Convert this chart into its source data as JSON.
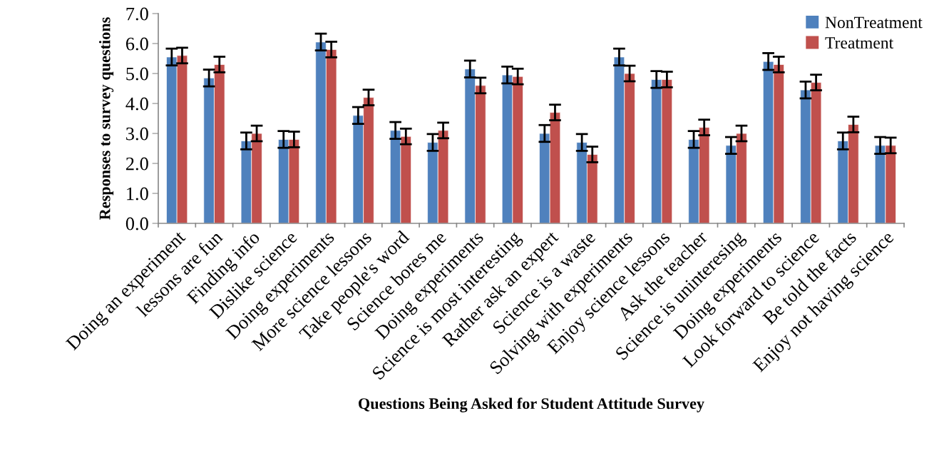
{
  "chart_data": {
    "type": "bar",
    "xlabel": "Questions Being Asked for Student Attitude Survey",
    "ylabel": "Responses to survey questions",
    "categories": [
      "Doing an experiment",
      "lessons are fun",
      "Finding info",
      "Dislike science",
      "Doing experiments",
      "More science lessons",
      "Take people's word",
      "Science bores me",
      "Doing experiments",
      "Science is most interesting",
      "Rather ask an expert",
      "Science is a waste",
      "Solving with experiments",
      "Enjoy science lessons",
      "Ask the teacher",
      "Science is uninteresing",
      "Doing experiments",
      "Look forward to science",
      "Be told the facts",
      "Enjoy not having science"
    ],
    "series": [
      {
        "name": "NonTreatment",
        "color": "#4f81bd",
        "values": [
          5.55,
          4.85,
          2.75,
          2.8,
          6.05,
          3.6,
          3.1,
          2.7,
          5.15,
          4.95,
          3.0,
          2.7,
          5.55,
          4.8,
          2.8,
          2.6,
          5.4,
          4.45,
          2.75,
          2.6
        ],
        "errors": [
          0.28,
          0.28,
          0.28,
          0.28,
          0.28,
          0.28,
          0.28,
          0.28,
          0.28,
          0.28,
          0.28,
          0.28,
          0.28,
          0.28,
          0.28,
          0.28,
          0.28,
          0.28,
          0.28,
          0.28
        ]
      },
      {
        "name": "Treatment",
        "color": "#c0504d",
        "values": [
          5.6,
          5.3,
          3.0,
          2.8,
          5.8,
          4.2,
          2.9,
          3.1,
          4.6,
          4.9,
          3.7,
          2.3,
          5.0,
          4.8,
          3.2,
          3.0,
          5.3,
          4.7,
          3.3,
          2.6
        ],
        "errors": [
          0.26,
          0.26,
          0.26,
          0.26,
          0.26,
          0.26,
          0.26,
          0.26,
          0.26,
          0.26,
          0.26,
          0.26,
          0.26,
          0.26,
          0.26,
          0.26,
          0.26,
          0.26,
          0.26,
          0.26
        ]
      }
    ],
    "ylim": [
      0,
      7
    ],
    "yticks": [
      {
        "value": 0,
        "label": "0.0"
      },
      {
        "value": 1,
        "label": "1.0"
      },
      {
        "value": 2,
        "label": "2.0"
      },
      {
        "value": 3,
        "label": "3.0"
      },
      {
        "value": 4,
        "label": "4.0"
      },
      {
        "value": 5,
        "label": "5.0"
      },
      {
        "value": 6,
        "label": "6.0"
      },
      {
        "value": 7,
        "label": "7.0"
      }
    ],
    "grid": false,
    "legend": "top right"
  }
}
